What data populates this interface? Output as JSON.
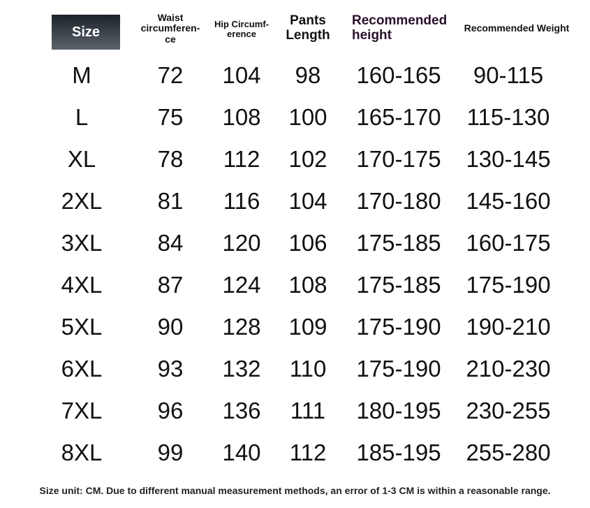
{
  "headers": {
    "size": "Size",
    "waist": "Waist circumferen- ce",
    "hip": "Hip Circumf- erence",
    "pants": "Pants Length",
    "height": "Recommended height",
    "weight": "Recommended Weight"
  },
  "rows": [
    [
      "M",
      "72",
      "104",
      "98",
      "160-165",
      "90-115"
    ],
    [
      "L",
      "75",
      "108",
      "100",
      "165-170",
      "115-130"
    ],
    [
      "XL",
      "78",
      "112",
      "102",
      "170-175",
      "130-145"
    ],
    [
      "2XL",
      "81",
      "116",
      "104",
      "170-180",
      "145-160"
    ],
    [
      "3XL",
      "84",
      "120",
      "106",
      "175-185",
      "160-175"
    ],
    [
      "4XL",
      "87",
      "124",
      "108",
      "175-185",
      "175-190"
    ],
    [
      "5XL",
      "90",
      "128",
      "109",
      "175-190",
      "190-210"
    ],
    [
      "6XL",
      "93",
      "132",
      "110",
      "175-190",
      "210-230"
    ],
    [
      "7XL",
      "96",
      "136",
      "111",
      "180-195",
      "230-255"
    ],
    [
      "8XL",
      "99",
      "140",
      "112",
      "185-195",
      "255-280"
    ]
  ],
  "note": "Size unit: CM. Due to different manual measurement methods, an error of 1-3 CM is within a reasonable range.",
  "colors": {
    "header_box": "#2a3138",
    "height_header": "#2a0f2a"
  }
}
